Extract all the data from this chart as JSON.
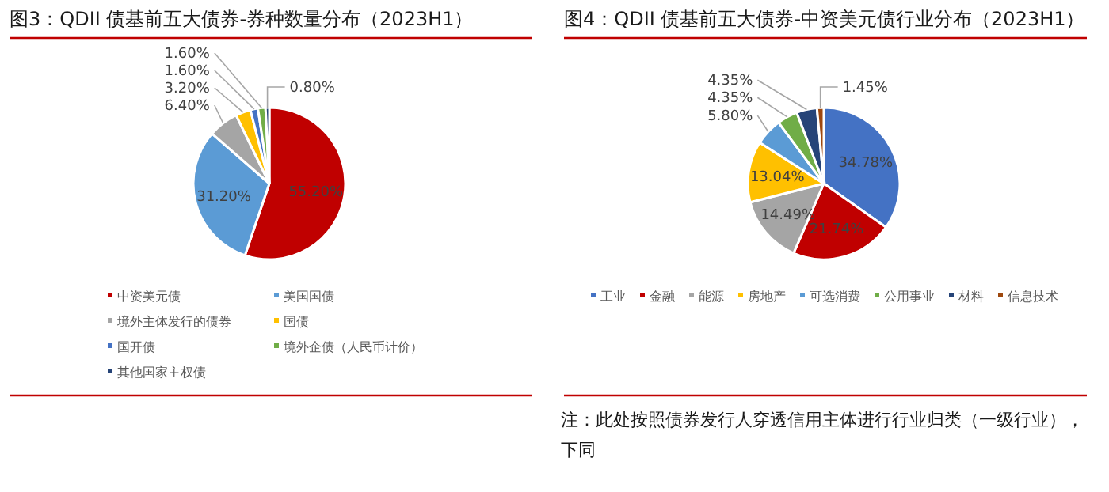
{
  "chart_data": [
    {
      "type": "pie",
      "title": "图3：QDII 债基前五大债券-券种数量分布（2023H1）",
      "categories": [
        "中资美元债",
        "美国国债",
        "境外主体发行的债券",
        "国债",
        "国开债",
        "境外企债（人民币计价）",
        "其他国家主权债"
      ],
      "values": [
        55.2,
        31.2,
        6.4,
        3.2,
        1.6,
        1.6,
        0.8
      ],
      "colors": [
        "#c00000",
        "#5b9bd5",
        "#a5a5a5",
        "#ffc000",
        "#4472c4",
        "#70ad47",
        "#264478"
      ],
      "value_labels": [
        "55.20%",
        "31.20%",
        "6.40%",
        "3.20%",
        "1.60%",
        "1.60%",
        "0.80%"
      ],
      "legend": "bottom"
    },
    {
      "type": "pie",
      "title": "图4：QDII 债基前五大债券-中资美元债行业分布（2023H1）",
      "categories": [
        "工业",
        "金融",
        "能源",
        "房地产",
        "可选消费",
        "公用事业",
        "材料",
        "信息技术"
      ],
      "values": [
        34.78,
        21.74,
        14.49,
        13.04,
        5.8,
        4.35,
        4.35,
        1.45
      ],
      "colors": [
        "#4472c4",
        "#c00000",
        "#a5a5a5",
        "#ffc000",
        "#5b9bd5",
        "#70ad47",
        "#264478",
        "#9e480e"
      ],
      "value_labels": [
        "34.78%",
        "21.74%",
        "14.49%",
        "13.04%",
        "5.80%",
        "4.35%",
        "4.35%",
        "1.45%"
      ],
      "legend": "bottom",
      "annotations": [
        "注：此处按照债券发行人穿透信用主体进行行业归类（一级行业），下同"
      ]
    }
  ]
}
